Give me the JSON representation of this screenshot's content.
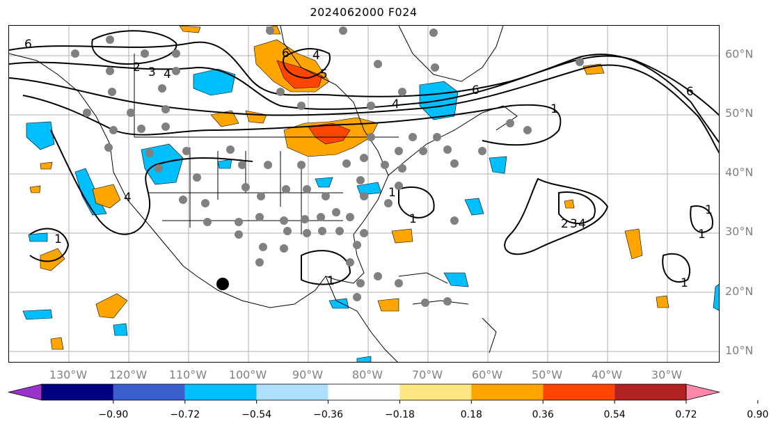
{
  "title": "2024062000 F024",
  "lat_labels": [
    "60°N",
    "50°N",
    "40°N",
    "30°N",
    "20°N",
    "10°N"
  ],
  "lon_labels": [
    "130°W",
    "120°W",
    "110°W",
    "100°W",
    "90°W",
    "80°W",
    "70°W",
    "60°W",
    "50°W",
    "40°W",
    "30°W"
  ],
  "colorbar": {
    "ticks": [
      "−0.90",
      "−0.72",
      "−0.54",
      "−0.36",
      "−0.18",
      "0.18",
      "0.36",
      "0.54",
      "0.72",
      "0.90"
    ],
    "colors": [
      "#9933cc",
      "#000080",
      "#3a5fcd",
      "#00bfff",
      "#b0e0ff",
      "#ffffff",
      "#ffe680",
      "#ffa500",
      "#ff4500",
      "#b22222",
      "#ff88aa"
    ]
  },
  "contour_labels": [
    "6",
    "2",
    "3",
    "4",
    "6",
    "5",
    "4",
    "6",
    "4",
    "1",
    "6",
    "4",
    "1",
    "1",
    "1",
    "1",
    "2",
    "3",
    "4",
    "1",
    "1",
    "1"
  ],
  "map_features": {
    "contour_color": "#000000",
    "station_color": "#808080",
    "highlight_marker_color": "#000000"
  }
}
